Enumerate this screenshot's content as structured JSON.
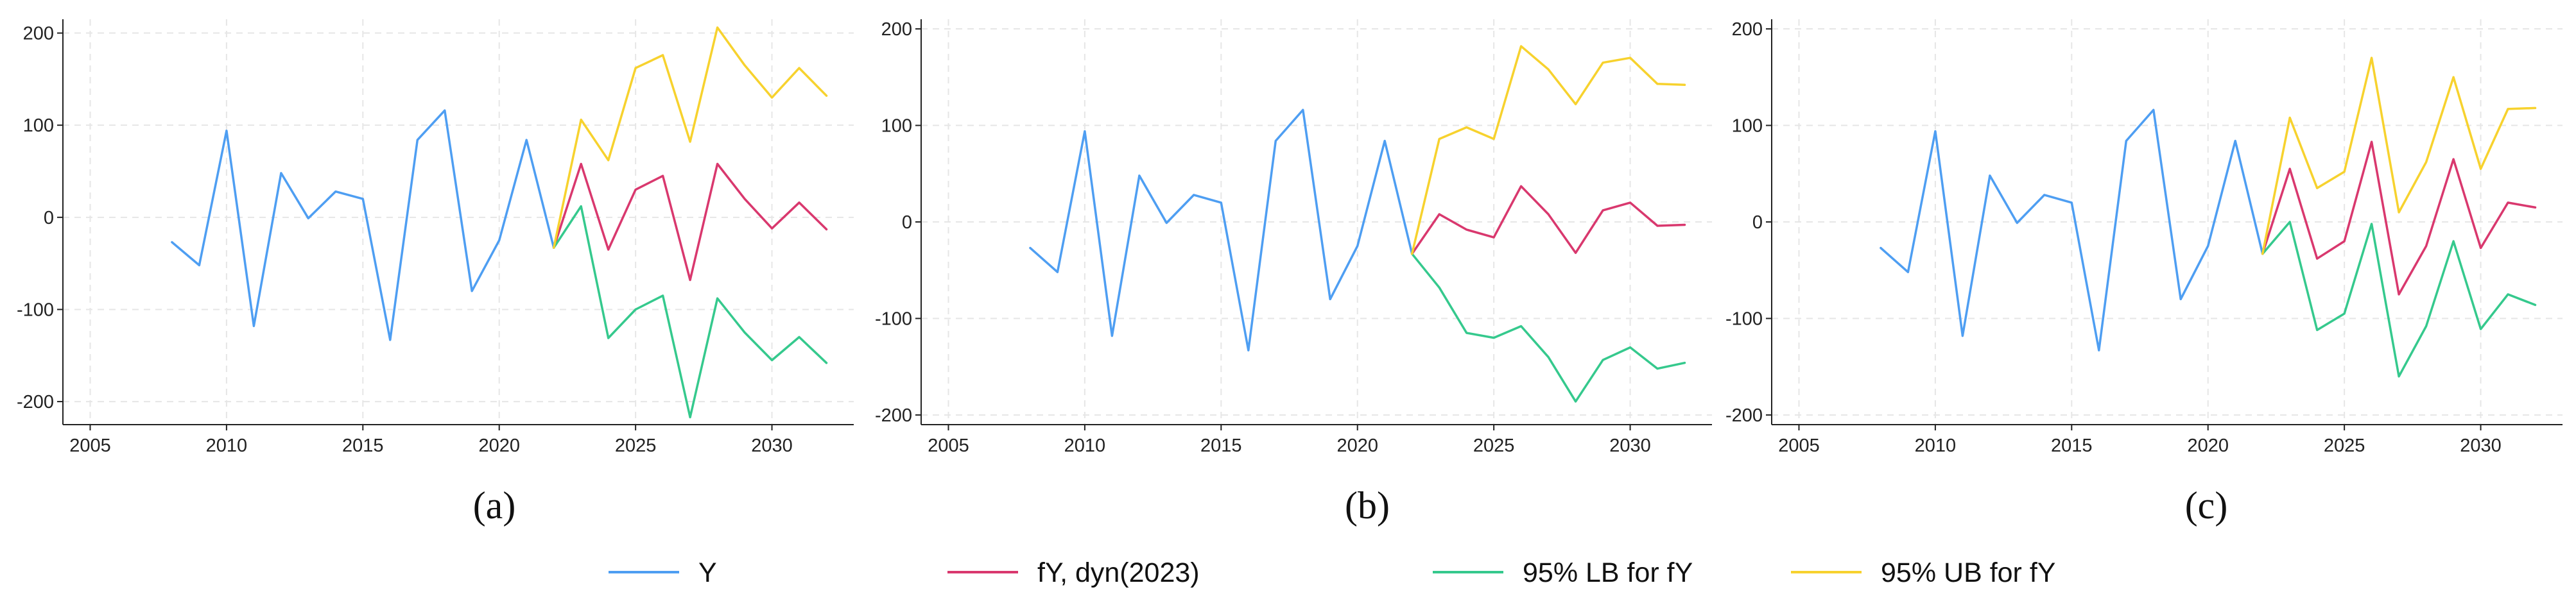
{
  "legend": [
    {
      "label": "Y",
      "color": "#4e9ef2"
    },
    {
      "label": "fY, dyn(2023)",
      "color": "#d9386e"
    },
    {
      "label": "95% LB for fY",
      "color": "#35c98d"
    },
    {
      "label": "95% UB for fY",
      "color": "#f7d22e"
    }
  ],
  "chart_data": [
    {
      "type": "line",
      "caption": "(a)",
      "xlim": [
        2004,
        2033
      ],
      "ylim": [
        -225,
        215
      ],
      "x_ticks": [
        2005,
        2010,
        2015,
        2020,
        2025,
        2030
      ],
      "y_ticks": [
        -200,
        -100,
        0,
        100,
        200
      ],
      "grid": true,
      "series": [
        {
          "name": "Y",
          "color": "#4e9ef2",
          "x": [
            2008,
            2009,
            2010,
            2011,
            2012,
            2013,
            2014,
            2015,
            2016,
            2017,
            2018,
            2019,
            2020,
            2021,
            2022
          ],
          "values": [
            -27,
            -52,
            94,
            -118,
            48,
            -1,
            28,
            20,
            -133,
            84,
            116,
            -80,
            -25,
            84,
            -33
          ]
        },
        {
          "name": "fY, dyn(2023)",
          "color": "#d9386e",
          "x": [
            2022,
            2023,
            2024,
            2025,
            2026,
            2027,
            2028,
            2029,
            2030,
            2031,
            2032
          ],
          "values": [
            -33,
            58,
            -35,
            30,
            45,
            -68,
            58,
            20,
            -12,
            16,
            -13
          ]
        },
        {
          "name": "95% LB for fY",
          "color": "#35c98d",
          "x": [
            2022,
            2023,
            2024,
            2025,
            2026,
            2027,
            2028,
            2029,
            2030,
            2031,
            2032
          ],
          "values": [
            -33,
            12,
            -131,
            -100,
            -85,
            -217,
            -88,
            -125,
            -155,
            -130,
            -158
          ]
        },
        {
          "name": "95% UB for fY",
          "color": "#f7d22e",
          "x": [
            2022,
            2023,
            2024,
            2025,
            2026,
            2027,
            2028,
            2029,
            2030,
            2031,
            2032
          ],
          "values": [
            -33,
            106,
            62,
            162,
            176,
            82,
            206,
            165,
            130,
            162,
            132
          ]
        }
      ]
    },
    {
      "type": "line",
      "caption": "(b)",
      "xlim": [
        2004,
        2033
      ],
      "ylim": [
        -210,
        210
      ],
      "x_ticks": [
        2005,
        2010,
        2015,
        2020,
        2025,
        2030
      ],
      "y_ticks": [
        -200,
        -100,
        0,
        100,
        200
      ],
      "grid": true,
      "series": [
        {
          "name": "Y",
          "color": "#4e9ef2",
          "x": [
            2008,
            2009,
            2010,
            2011,
            2012,
            2013,
            2014,
            2015,
            2016,
            2017,
            2018,
            2019,
            2020,
            2021,
            2022
          ],
          "values": [
            -27,
            -52,
            94,
            -118,
            48,
            -1,
            28,
            20,
            -133,
            84,
            116,
            -80,
            -25,
            84,
            -33
          ]
        },
        {
          "name": "fY, dyn(2023)",
          "color": "#d9386e",
          "x": [
            2022,
            2023,
            2024,
            2025,
            2026,
            2027,
            2028,
            2029,
            2030,
            2031,
            2032
          ],
          "values": [
            -33,
            8,
            -8,
            -16,
            37,
            8,
            -32,
            12,
            20,
            -4,
            -3
          ]
        },
        {
          "name": "95% LB for fY",
          "color": "#35c98d",
          "x": [
            2022,
            2023,
            2024,
            2025,
            2026,
            2027,
            2028,
            2029,
            2030,
            2031,
            2032
          ],
          "values": [
            -33,
            -68,
            -115,
            -120,
            -108,
            -140,
            -186,
            -143,
            -130,
            -152,
            -146
          ]
        },
        {
          "name": "95% UB for fY",
          "color": "#f7d22e",
          "x": [
            2022,
            2023,
            2024,
            2025,
            2026,
            2027,
            2028,
            2029,
            2030,
            2031,
            2032
          ],
          "values": [
            -33,
            86,
            98,
            86,
            182,
            158,
            122,
            165,
            170,
            143,
            142
          ]
        }
      ]
    },
    {
      "type": "line",
      "caption": "(c)",
      "xlim": [
        2004,
        2033
      ],
      "ylim": [
        -210,
        210
      ],
      "x_ticks": [
        2005,
        2010,
        2015,
        2020,
        2025,
        2030
      ],
      "y_ticks": [
        -200,
        -100,
        0,
        100,
        200
      ],
      "grid": true,
      "series": [
        {
          "name": "Y",
          "color": "#4e9ef2",
          "x": [
            2008,
            2009,
            2010,
            2011,
            2012,
            2013,
            2014,
            2015,
            2016,
            2017,
            2018,
            2019,
            2020,
            2021,
            2022
          ],
          "values": [
            -27,
            -52,
            94,
            -118,
            48,
            -1,
            28,
            20,
            -133,
            84,
            116,
            -80,
            -25,
            84,
            -33
          ]
        },
        {
          "name": "fY, dyn(2023)",
          "color": "#d9386e",
          "x": [
            2022,
            2023,
            2024,
            2025,
            2026,
            2027,
            2028,
            2029,
            2030,
            2031,
            2032
          ],
          "values": [
            -33,
            55,
            -38,
            -20,
            83,
            -75,
            -25,
            65,
            -27,
            20,
            15
          ]
        },
        {
          "name": "95% LB for fY",
          "color": "#35c98d",
          "x": [
            2022,
            2023,
            2024,
            2025,
            2026,
            2027,
            2028,
            2029,
            2030,
            2031,
            2032
          ],
          "values": [
            -33,
            0,
            -112,
            -95,
            -2,
            -160,
            -108,
            -20,
            -111,
            -75,
            -86
          ]
        },
        {
          "name": "95% UB for fY",
          "color": "#f7d22e",
          "x": [
            2022,
            2023,
            2024,
            2025,
            2026,
            2027,
            2028,
            2029,
            2030,
            2031,
            2032
          ],
          "values": [
            -33,
            108,
            35,
            52,
            170,
            10,
            62,
            150,
            55,
            117,
            118
          ]
        }
      ]
    }
  ]
}
